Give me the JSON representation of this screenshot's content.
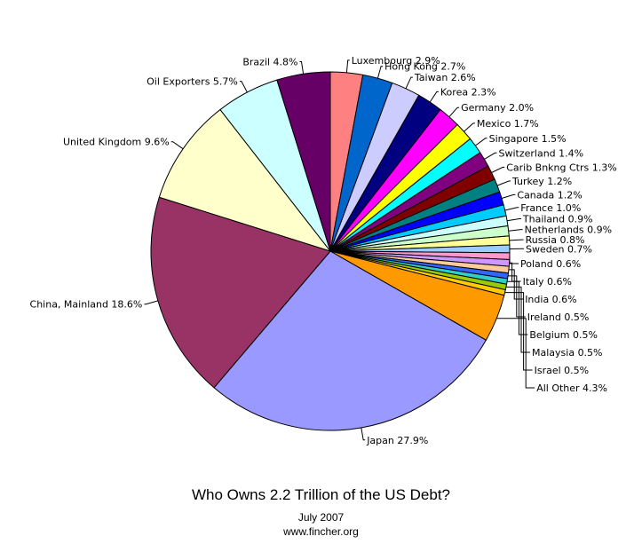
{
  "chart_data": {
    "type": "pie",
    "title": "Who Owns 2.2 Trillion of the US Debt?",
    "subtitle": "July 2007",
    "source": "www.fincher.org",
    "slices": [
      {
        "label": "Luxembourg 2.9%",
        "value": 2.9,
        "color": "#ff8080"
      },
      {
        "label": "Hong Kong 2.7%",
        "value": 2.7,
        "color": "#0066cc"
      },
      {
        "label": "Taiwan 2.6%",
        "value": 2.6,
        "color": "#ccccff"
      },
      {
        "label": "Korea 2.3%",
        "value": 2.3,
        "color": "#000080"
      },
      {
        "label": "Germany 2.0%",
        "value": 2.0,
        "color": "#ff00ff"
      },
      {
        "label": "Mexico 1.7%",
        "value": 1.7,
        "color": "#ffff00"
      },
      {
        "label": "Singapore 1.5%",
        "value": 1.5,
        "color": "#00ffff"
      },
      {
        "label": "Switzerland 1.4%",
        "value": 1.4,
        "color": "#800080"
      },
      {
        "label": "Carib Bnkng Ctrs 1.3%",
        "value": 1.3,
        "color": "#800000"
      },
      {
        "label": "Turkey 1.2%",
        "value": 1.2,
        "color": "#008080"
      },
      {
        "label": "Canada 1.2%",
        "value": 1.2,
        "color": "#0000ff"
      },
      {
        "label": "France 1.0%",
        "value": 1.0,
        "color": "#00ccff"
      },
      {
        "label": "Thailand 0.9%",
        "value": 0.9,
        "color": "#ccffff"
      },
      {
        "label": "Netherlands 0.9%",
        "value": 0.9,
        "color": "#ccffcc"
      },
      {
        "label": "Russia 0.8%",
        "value": 0.8,
        "color": "#ffff99"
      },
      {
        "label": "Sweden 0.7%",
        "value": 0.7,
        "color": "#99ccff"
      },
      {
        "label": "Poland 0.6%",
        "value": 0.6,
        "color": "#ff99cc"
      },
      {
        "label": "Italy 0.6%",
        "value": 0.6,
        "color": "#cc99ff"
      },
      {
        "label": "India 0.6%",
        "value": 0.6,
        "color": "#ffcc99"
      },
      {
        "label": "Ireland 0.5%",
        "value": 0.5,
        "color": "#3366ff"
      },
      {
        "label": "Belgium 0.5%",
        "value": 0.5,
        "color": "#33cccc"
      },
      {
        "label": "Malaysia 0.5%",
        "value": 0.5,
        "color": "#99cc00"
      },
      {
        "label": "Israel 0.5%",
        "value": 0.5,
        "color": "#ffcc00"
      },
      {
        "label": "All Other 4.3%",
        "value": 4.3,
        "color": "#ff9900"
      },
      {
        "label": "Japan 27.9%",
        "value": 27.9,
        "color": "#9999ff"
      },
      {
        "label": "China, Mainland 18.6%",
        "value": 18.6,
        "color": "#993366"
      },
      {
        "label": "United Kingdom 9.6%",
        "value": 9.6,
        "color": "#ffffcc"
      },
      {
        "label": "Oil Exporters 5.7%",
        "value": 5.7,
        "color": "#ccffff"
      },
      {
        "label": "Brazil 4.8%",
        "value": 4.8,
        "color": "#660066"
      }
    ]
  }
}
